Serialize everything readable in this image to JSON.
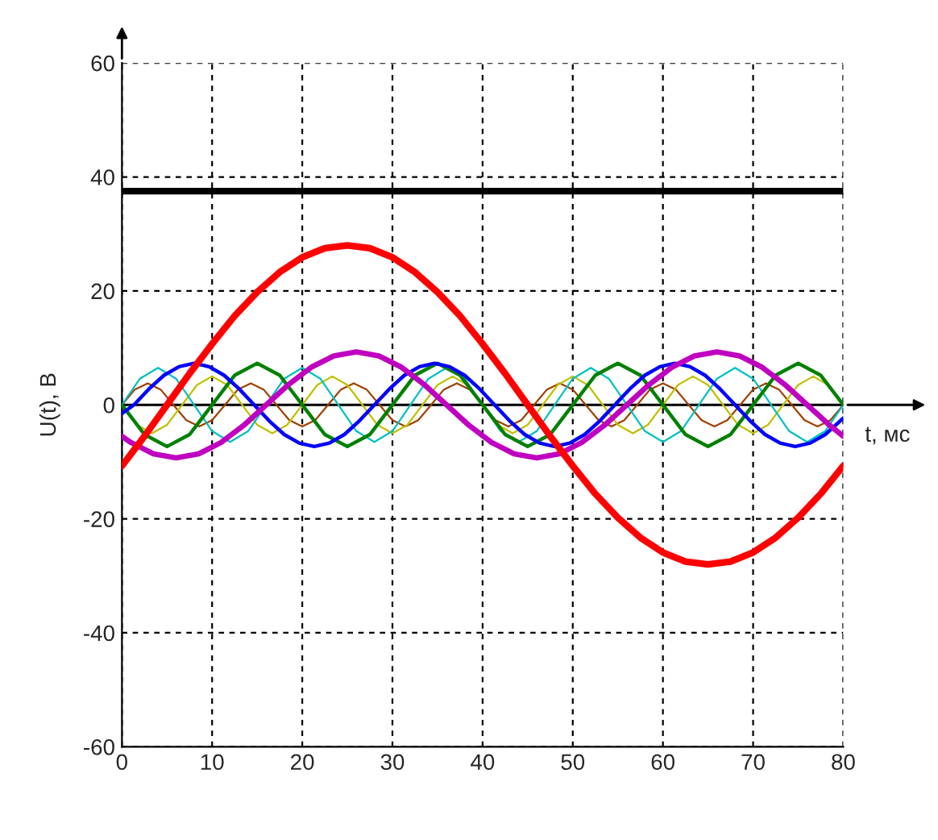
{
  "chart_data": {
    "type": "line",
    "xlabel": "t, мс",
    "ylabel": "U(t), В",
    "xlim": [
      0,
      80
    ],
    "ylim": [
      -60,
      60
    ],
    "xticks": [
      0,
      10,
      20,
      30,
      40,
      50,
      60,
      70,
      80
    ],
    "yticks": [
      -60,
      -40,
      -20,
      0,
      20,
      40,
      60
    ],
    "grid": true,
    "line_style": "solid",
    "marker": "none",
    "series": [
      {
        "color": "#000000",
        "x": [
          0,
          80
        ],
        "values": [
          37.5,
          37.5
        ]
      },
      {
        "color": "#ff0000",
        "x": [
          0,
          2.5,
          5,
          7.5,
          10,
          12.5,
          15,
          17.5,
          20,
          22.5,
          25,
          27.5,
          30,
          32.5,
          35,
          37.5,
          40,
          42.5,
          45,
          47.5,
          50,
          52.5,
          55,
          57.5,
          60,
          62.5,
          65,
          67.5,
          70,
          72.5,
          75,
          77.5,
          80
        ],
        "values": [
          -10.7,
          -5.5,
          0,
          5.5,
          10.7,
          15.6,
          19.8,
          23.3,
          25.9,
          27.5,
          28,
          27.5,
          25.9,
          23.3,
          19.8,
          15.6,
          10.7,
          5.5,
          0,
          -5.5,
          -10.7,
          -15.6,
          -19.8,
          -23.3,
          -25.9,
          -27.5,
          -28,
          -27.5,
          -25.9,
          -23.3,
          -19.8,
          -15.6,
          -10.7
        ]
      },
      {
        "color": "#c000c0",
        "x": [
          0,
          1,
          3.5,
          6,
          8.5,
          11,
          13.5,
          16,
          18.5,
          21,
          23.5,
          26,
          28.5,
          31,
          33.5,
          36,
          38.5,
          41,
          43.5,
          46,
          48.5,
          51,
          53.5,
          56,
          58.5,
          61,
          63.5,
          66,
          68.5,
          71,
          73.5,
          76,
          78.5,
          80
        ],
        "values": [
          -5.5,
          -6.6,
          -8.6,
          -9.3,
          -8.6,
          -6.6,
          -3.6,
          0,
          3.6,
          6.6,
          8.6,
          9.3,
          8.6,
          6.6,
          3.6,
          0,
          -3.6,
          -6.6,
          -8.6,
          -9.3,
          -8.6,
          -6.6,
          -3.6,
          0,
          3.6,
          6.6,
          8.6,
          9.3,
          8.6,
          6.6,
          3.6,
          0,
          -3.6,
          -5.5
        ]
      },
      {
        "color": "#0000ff",
        "x": [
          0,
          1.33,
          3,
          4.67,
          6.33,
          8,
          9.67,
          11.33,
          13,
          14.67,
          16.33,
          18,
          19.67,
          21.33,
          23,
          24.67,
          26.33,
          28,
          29.67,
          31.33,
          33,
          34.67,
          36.33,
          38,
          39.67,
          41.33,
          43,
          44.67,
          46.33,
          48,
          49.67,
          51.33,
          53,
          54.67,
          56.33,
          58,
          59.67,
          61.33,
          63,
          64.67,
          66.33,
          68,
          69.67,
          71.33,
          73,
          74.67,
          76.33,
          78,
          79.67,
          80
        ],
        "values": [
          -1.5,
          0,
          2.8,
          5.2,
          6.7,
          7.3,
          6.7,
          5.2,
          2.8,
          0,
          -2.8,
          -5.2,
          -6.7,
          -7.3,
          -6.7,
          -5.2,
          -2.8,
          0,
          2.8,
          5.2,
          6.7,
          7.3,
          6.7,
          5.2,
          2.8,
          0,
          -2.8,
          -5.2,
          -6.7,
          -7.3,
          -6.7,
          -5.2,
          -2.8,
          0,
          2.8,
          5.2,
          6.7,
          7.3,
          6.7,
          5.2,
          2.8,
          0,
          -2.8,
          -5.2,
          -6.7,
          -7.3,
          -6.7,
          -5.2,
          -2.8,
          -2.3
        ]
      },
      {
        "color": "#008000",
        "x": [
          0,
          2.5,
          5,
          7.5,
          10,
          12.5,
          15,
          17.5,
          20,
          22.5,
          25,
          27.5,
          30,
          32.5,
          35,
          37.5,
          40,
          42.5,
          45,
          47.5,
          50,
          52.5,
          55,
          57.5,
          60,
          62.5,
          65,
          67.5,
          70,
          72.5,
          75,
          77.5,
          80
        ],
        "values": [
          0,
          -5.2,
          -7.3,
          -5.2,
          0,
          5.2,
          7.3,
          5.2,
          0,
          -5.2,
          -7.3,
          -5.2,
          0,
          5.2,
          7.3,
          5.2,
          0,
          -5.2,
          -7.3,
          -5.2,
          0,
          5.2,
          7.3,
          5.2,
          0,
          -5.2,
          -7.3,
          -5.2,
          0,
          5.2,
          7.3,
          5.2,
          0
        ]
      },
      {
        "color": "#00c0c0",
        "x": [
          0,
          2,
          4,
          6,
          8,
          10,
          12,
          14,
          16,
          18,
          20,
          22,
          24,
          26,
          28,
          30,
          32,
          34,
          36,
          38,
          40,
          42,
          44,
          46,
          48,
          50,
          52,
          54,
          56,
          58,
          60,
          62,
          64,
          66,
          68,
          70,
          72,
          74,
          76,
          78,
          80
        ],
        "values": [
          0,
          4.6,
          6.5,
          4.6,
          0,
          -4.6,
          -6.5,
          -4.6,
          0,
          4.6,
          6.5,
          4.6,
          0,
          -4.6,
          -6.5,
          -4.6,
          0,
          4.6,
          6.5,
          4.6,
          0,
          -4.6,
          -6.5,
          -4.6,
          0,
          4.6,
          6.5,
          4.6,
          0,
          -4.6,
          -6.5,
          -4.6,
          0,
          4.6,
          6.5,
          4.6,
          0,
          -4.6,
          -6.5,
          -4.6,
          0
        ]
      },
      {
        "color": "#c0c000",
        "x": [
          0,
          1.67,
          3.33,
          5,
          6.67,
          8.33,
          10,
          11.67,
          13.33,
          15,
          16.67,
          18.33,
          20,
          21.67,
          23.33,
          25,
          26.67,
          28.33,
          30,
          31.67,
          33.33,
          35,
          36.67,
          38.33,
          40,
          41.67,
          43.33,
          45,
          46.67,
          48.33,
          50,
          51.67,
          53.33,
          55,
          56.67,
          58.33,
          60,
          61.67,
          63.33,
          65,
          66.67,
          68.33,
          70,
          71.67,
          73.33,
          75,
          76.67,
          78.33,
          80
        ],
        "values": [
          0,
          -3.5,
          -5,
          -3.5,
          0,
          3.5,
          5,
          3.5,
          0,
          -3.5,
          -5,
          -3.5,
          0,
          3.5,
          5,
          3.5,
          0,
          -3.5,
          -5,
          -3.5,
          0,
          3.5,
          5,
          3.5,
          0,
          -3.5,
          -5,
          -3.5,
          0,
          3.5,
          5,
          3.5,
          0,
          -3.5,
          -5,
          -3.5,
          0,
          3.5,
          5,
          3.5,
          0,
          -3.5,
          -5,
          -3.5,
          0,
          3.5,
          5,
          3.5,
          0
        ]
      },
      {
        "color": "#a04000",
        "x": [
          0,
          1.43,
          2.86,
          4.29,
          5.71,
          7.14,
          8.57,
          10,
          11.43,
          12.86,
          14.29,
          15.71,
          17.14,
          18.57,
          20,
          21.43,
          22.86,
          24.29,
          25.71,
          27.14,
          28.57,
          30,
          31.43,
          32.86,
          34.29,
          35.71,
          37.14,
          38.57,
          40,
          41.43,
          42.86,
          44.29,
          45.71,
          47.14,
          48.57,
          50,
          51.43,
          52.86,
          54.29,
          55.71,
          57.14,
          58.57,
          60,
          61.43,
          62.86,
          64.29,
          65.71,
          67.14,
          68.57,
          70,
          71.43,
          72.86,
          74.29,
          75.71,
          77.14,
          78.57,
          80
        ],
        "values": [
          0,
          2.7,
          3.8,
          2.7,
          0,
          -2.7,
          -3.8,
          -2.7,
          0,
          2.7,
          3.8,
          2.7,
          0,
          -2.7,
          -3.8,
          -2.7,
          0,
          2.7,
          3.8,
          2.7,
          0,
          -2.7,
          -3.8,
          -2.7,
          0,
          2.7,
          3.8,
          2.7,
          0,
          -2.7,
          -3.8,
          -2.7,
          0,
          2.7,
          3.8,
          2.7,
          0,
          -2.7,
          -3.8,
          -2.7,
          0,
          2.7,
          3.8,
          2.7,
          0,
          -2.7,
          -3.8,
          -2.7,
          0,
          2.7,
          3.8,
          2.7,
          0,
          -2.7,
          -3.8,
          -2.7,
          0
        ]
      }
    ]
  }
}
